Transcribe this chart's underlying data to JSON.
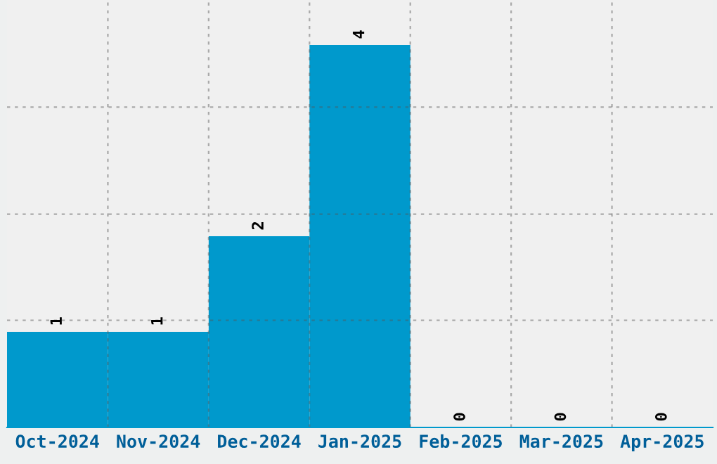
{
  "chart_data": {
    "type": "bar",
    "categories": [
      "Oct-2024",
      "Nov-2024",
      "Dec-2024",
      "Jan-2025",
      "Feb-2025",
      "Mar-2025",
      "Apr-2025"
    ],
    "values": [
      1,
      1,
      2,
      4,
      0,
      0,
      0
    ],
    "color": "#0099cc",
    "ylim": [
      0,
      4.47
    ],
    "yticks": [
      {
        "value": 1.12,
        "label": null
      },
      {
        "value": 2.23,
        "label": null
      },
      {
        "value": 3.35,
        "label": null
      }
    ],
    "grid": true,
    "data_labels": true
  }
}
